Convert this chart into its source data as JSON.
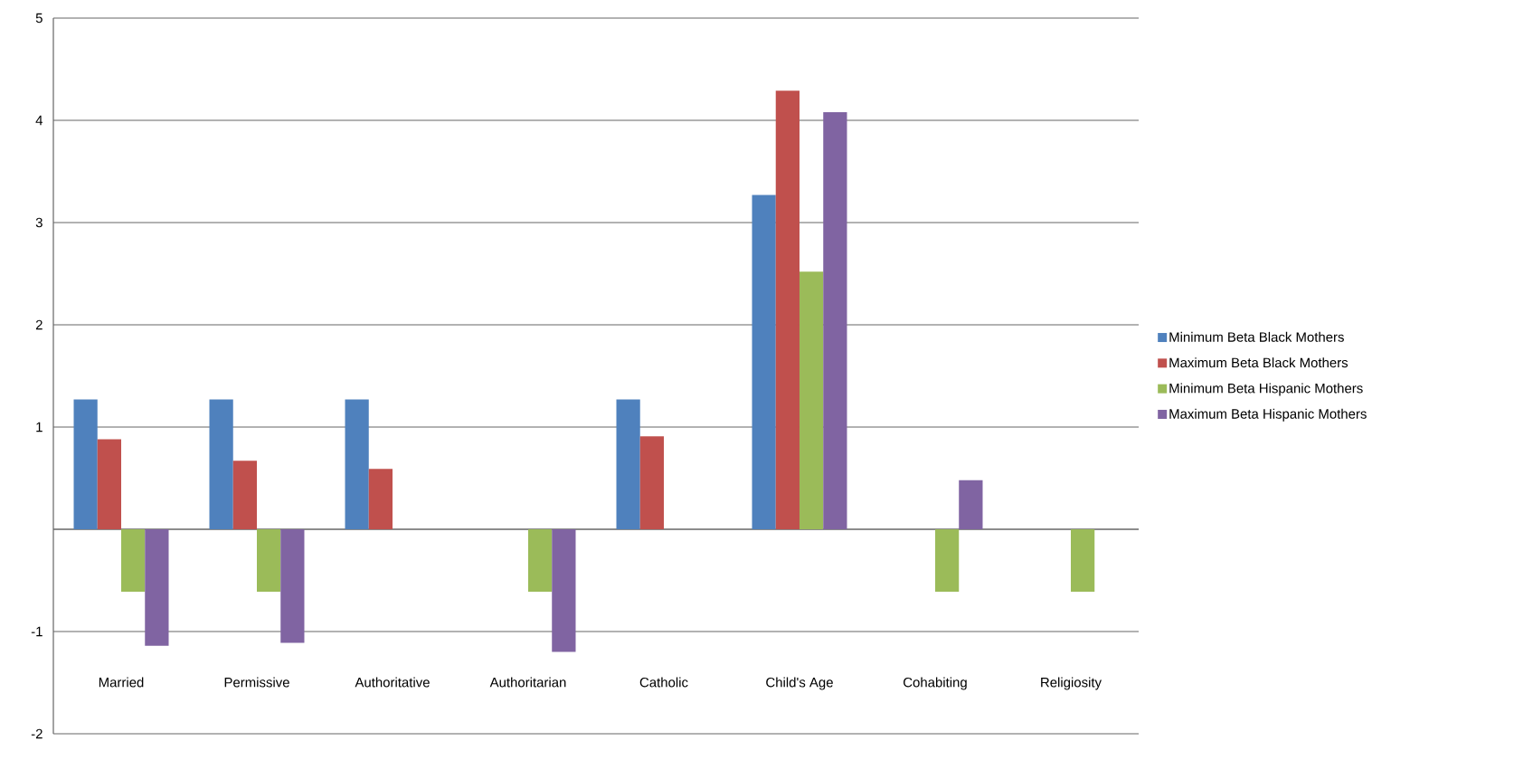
{
  "chart_data": {
    "type": "bar",
    "categories": [
      "Married",
      "Permissive",
      "Authoritative",
      "Authoritarian",
      "Catholic",
      "Child's Age",
      "Cohabiting",
      "Religiosity"
    ],
    "series": [
      {
        "name": "Minimum Beta Black Mothers",
        "color": "#4f81bd",
        "values": [
          1.27,
          1.27,
          1.27,
          null,
          1.27,
          3.27,
          null,
          null
        ]
      },
      {
        "name": "Maximum Beta Black Mothers",
        "color": "#c0504d",
        "values": [
          0.88,
          0.67,
          0.59,
          null,
          0.91,
          4.29,
          null,
          null
        ]
      },
      {
        "name": "Minimum Beta Hispanic Mothers",
        "color": "#9bbb59",
        "values": [
          -0.61,
          -0.61,
          null,
          -0.61,
          null,
          2.52,
          -0.61,
          -0.61
        ]
      },
      {
        "name": "Maximum Beta Hispanic Mothers",
        "color": "#8064a2",
        "values": [
          -1.14,
          -1.11,
          null,
          -1.2,
          null,
          4.08,
          0.48,
          null
        ]
      }
    ],
    "ylim": [
      -2,
      5
    ],
    "yticks": [
      -2,
      -1,
      {
        "value": 0,
        "label": null
      },
      1,
      2,
      3,
      4,
      5
    ],
    "grid": "y",
    "legend": "right"
  }
}
